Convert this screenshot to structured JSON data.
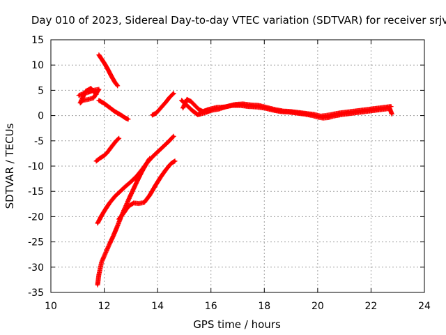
{
  "chart_data": {
    "type": "scatter",
    "title": "Day 010 of 2023, Sidereal Day-to-day VTEC variation (SDTVAR) for receiver srjv",
    "xlabel": "GPS time / hours",
    "ylabel": "SDTVAR / TECUs",
    "xlim": [
      10,
      24
    ],
    "ylim": [
      -35,
      15
    ],
    "xticks": [
      "10",
      "12",
      "14",
      "16",
      "18",
      "20",
      "22",
      "24"
    ],
    "yticks": [
      "15",
      "10",
      "5",
      "0",
      "-5",
      "-10",
      "-15",
      "-20",
      "-25",
      "-30",
      "-35"
    ],
    "grid": true,
    "legend": "none",
    "marker": "plus",
    "color": "#ff0000",
    "series": [
      {
        "points": [
          [
            11.05,
            4.0
          ],
          [
            11.2,
            4.3
          ],
          [
            11.4,
            4.6
          ],
          [
            11.6,
            5.0
          ],
          [
            11.8,
            5.2
          ],
          [
            11.6,
            3.5
          ],
          [
            11.4,
            3.2
          ],
          [
            11.2,
            3.0
          ],
          [
            11.1,
            2.5
          ],
          [
            11.3,
            4.8
          ],
          [
            11.5,
            5.4
          ],
          [
            11.7,
            4.2
          ]
        ]
      },
      {
        "points": [
          [
            11.8,
            3.0
          ],
          [
            12.0,
            2.4
          ],
          [
            12.2,
            1.6
          ],
          [
            12.4,
            0.8
          ],
          [
            12.6,
            0.2
          ],
          [
            12.8,
            -0.5
          ],
          [
            12.9,
            -0.7
          ]
        ]
      },
      {
        "points": [
          [
            11.8,
            12.0
          ],
          [
            11.9,
            11.2
          ],
          [
            12.0,
            10.4
          ],
          [
            12.1,
            9.5
          ],
          [
            12.2,
            8.5
          ],
          [
            12.3,
            7.5
          ],
          [
            12.4,
            6.6
          ],
          [
            12.5,
            5.9
          ]
        ]
      },
      {
        "points": [
          [
            11.7,
            -9.0
          ],
          [
            11.85,
            -8.4
          ],
          [
            12.0,
            -7.9
          ],
          [
            12.1,
            -7.4
          ],
          [
            12.3,
            -6.0
          ],
          [
            12.45,
            -5.0
          ],
          [
            12.55,
            -4.5
          ]
        ]
      },
      {
        "points": [
          [
            11.75,
            -21.3
          ],
          [
            11.9,
            -19.8
          ],
          [
            12.05,
            -18.5
          ],
          [
            12.2,
            -17.3
          ],
          [
            12.4,
            -16.0
          ],
          [
            12.6,
            -15.0
          ],
          [
            12.8,
            -14.0
          ],
          [
            13.0,
            -13.1
          ],
          [
            13.2,
            -12.1
          ],
          [
            13.4,
            -10.8
          ],
          [
            13.6,
            -9.4
          ],
          [
            13.8,
            -8.2
          ],
          [
            14.0,
            -7.2
          ],
          [
            14.2,
            -6.2
          ],
          [
            14.4,
            -5.2
          ],
          [
            14.6,
            -4.1
          ]
        ]
      },
      {
        "points": [
          [
            11.75,
            -33.5
          ],
          [
            11.8,
            -31.5
          ],
          [
            11.9,
            -29.0
          ],
          [
            12.05,
            -27.2
          ],
          [
            12.2,
            -25.4
          ],
          [
            12.35,
            -23.7
          ],
          [
            12.5,
            -21.8
          ],
          [
            12.65,
            -19.8
          ],
          [
            12.8,
            -18.0
          ],
          [
            12.95,
            -16.2
          ],
          [
            13.1,
            -14.5
          ],
          [
            13.25,
            -12.8
          ],
          [
            13.4,
            -11.2
          ],
          [
            13.55,
            -9.8
          ],
          [
            13.7,
            -8.5
          ]
        ]
      },
      {
        "points": [
          [
            12.55,
            -20.5
          ],
          [
            12.7,
            -19.5
          ],
          [
            12.9,
            -18.0
          ],
          [
            13.1,
            -17.3
          ],
          [
            13.3,
            -17.4
          ],
          [
            13.5,
            -17.2
          ],
          [
            13.7,
            -15.8
          ],
          [
            13.9,
            -14.0
          ],
          [
            14.1,
            -12.3
          ],
          [
            14.3,
            -10.8
          ],
          [
            14.5,
            -9.5
          ],
          [
            14.65,
            -9.0
          ]
        ]
      },
      {
        "points": [
          [
            13.8,
            0.1
          ],
          [
            13.95,
            0.5
          ],
          [
            14.1,
            1.4
          ],
          [
            14.3,
            2.6
          ],
          [
            14.45,
            3.6
          ],
          [
            14.6,
            4.4
          ]
        ]
      },
      {
        "points": [
          [
            14.9,
            3.0
          ],
          [
            15.0,
            2.5
          ],
          [
            15.1,
            2.0
          ],
          [
            15.2,
            1.5
          ],
          [
            15.3,
            1.0
          ],
          [
            15.4,
            0.6
          ],
          [
            15.5,
            0.2
          ],
          [
            15.6,
            0.3
          ],
          [
            15.8,
            0.6
          ],
          [
            16.0,
            1.0
          ],
          [
            16.3,
            1.3
          ],
          [
            16.6,
            1.8
          ],
          [
            16.9,
            2.2
          ],
          [
            17.2,
            2.3
          ],
          [
            17.5,
            2.1
          ],
          [
            17.8,
            2.0
          ],
          [
            18.1,
            1.6
          ],
          [
            18.4,
            1.2
          ],
          [
            18.7,
            0.9
          ],
          [
            19.0,
            0.8
          ],
          [
            19.3,
            0.6
          ],
          [
            19.6,
            0.4
          ],
          [
            19.9,
            0.2
          ],
          [
            20.1,
            -0.1
          ],
          [
            20.3,
            0.0
          ],
          [
            20.5,
            0.2
          ],
          [
            20.8,
            0.5
          ],
          [
            21.1,
            0.7
          ],
          [
            21.4,
            0.9
          ],
          [
            21.7,
            1.1
          ],
          [
            22.0,
            1.3
          ],
          [
            22.3,
            1.5
          ],
          [
            22.6,
            1.7
          ],
          [
            22.75,
            1.8
          ]
        ]
      },
      {
        "points": [
          [
            14.95,
            1.5
          ],
          [
            15.1,
            3.2
          ],
          [
            15.25,
            2.8
          ],
          [
            15.4,
            2.0
          ],
          [
            15.55,
            1.2
          ],
          [
            15.7,
            0.8
          ],
          [
            15.9,
            1.2
          ],
          [
            16.2,
            1.6
          ],
          [
            16.5,
            1.7
          ],
          [
            16.8,
            2.0
          ],
          [
            17.1,
            2.0
          ],
          [
            17.4,
            1.8
          ],
          [
            17.7,
            1.7
          ],
          [
            18.0,
            1.5
          ],
          [
            18.3,
            1.1
          ],
          [
            18.6,
            0.8
          ],
          [
            18.9,
            0.7
          ],
          [
            19.2,
            0.5
          ],
          [
            19.5,
            0.3
          ],
          [
            19.8,
            0.0
          ],
          [
            20.0,
            -0.3
          ],
          [
            20.2,
            -0.5
          ],
          [
            20.4,
            -0.4
          ],
          [
            20.6,
            -0.1
          ],
          [
            20.9,
            0.2
          ],
          [
            21.2,
            0.4
          ],
          [
            21.5,
            0.6
          ],
          [
            21.8,
            0.8
          ],
          [
            22.1,
            1.0
          ],
          [
            22.4,
            1.2
          ],
          [
            22.7,
            1.4
          ],
          [
            22.78,
            0.3
          ]
        ]
      }
    ]
  }
}
